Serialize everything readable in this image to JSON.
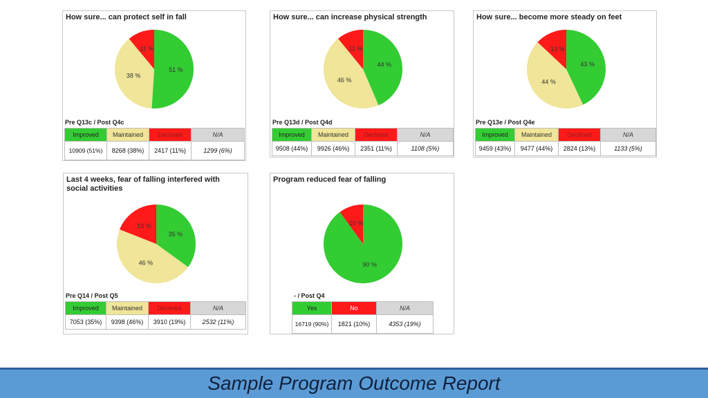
{
  "colors": {
    "improved": "#33cc33",
    "maintained": "#f0e598",
    "declined": "#ff1a1a",
    "na": "#d7d7d7",
    "footer": "#5b9bd5"
  },
  "footer": {
    "title": "Sample Program Outcome Report"
  },
  "chart_data": [
    {
      "type": "pie",
      "title": "How sure... can protect self in fall",
      "question_label": "Pre Q13c / Post Q4c",
      "slices": [
        {
          "name": "Improved",
          "value": 51,
          "label": "51 %"
        },
        {
          "name": "Maintained",
          "value": 38,
          "label": "38 %"
        },
        {
          "name": "Declined",
          "value": 11,
          "label": "11 %"
        }
      ],
      "legend": [
        "Improved",
        "Maintained",
        "Declined",
        "N/A"
      ],
      "counts": [
        "10909 (51%)",
        "8268 (38%)",
        "2417 (11%)",
        "1299 (6%)"
      ]
    },
    {
      "type": "pie",
      "title": "How sure... can increase physical strength",
      "question_label": "Pre Q13d / Post Q4d",
      "slices": [
        {
          "name": "Improved",
          "value": 44,
          "label": "44 %"
        },
        {
          "name": "Maintained",
          "value": 46,
          "label": "46 %"
        },
        {
          "name": "Declined",
          "value": 11,
          "label": "11 %"
        }
      ],
      "legend": [
        "Improved",
        "Maintained",
        "Declined",
        "N/A"
      ],
      "counts": [
        "9508 (44%)",
        "9926 (46%)",
        "2351 (11%)",
        "1108 (5%)"
      ]
    },
    {
      "type": "pie",
      "title": "How sure... become more steady on feet",
      "question_label": "Pre Q13e / Post Q4e",
      "slices": [
        {
          "name": "Improved",
          "value": 43,
          "label": "43 %"
        },
        {
          "name": "Maintained",
          "value": 44,
          "label": "44 %"
        },
        {
          "name": "Declined",
          "value": 13,
          "label": "13 %"
        }
      ],
      "legend": [
        "Improved",
        "Maintained",
        "Declined",
        "N/A"
      ],
      "counts": [
        "9459 (43%)",
        "9477 (44%)",
        "2824 (13%)",
        "1133 (5%)"
      ]
    },
    {
      "type": "pie",
      "title": "Last 4 weeks, fear of falling interfered with social activities",
      "question_label": "Pre Q14 / Post Q5",
      "slices": [
        {
          "name": "Improved",
          "value": 35,
          "label": "35 %"
        },
        {
          "name": "Maintained",
          "value": 46,
          "label": "46 %"
        },
        {
          "name": "Declined",
          "value": 19,
          "label": "19 %"
        }
      ],
      "legend": [
        "Improved",
        "Maintained",
        "Declined",
        "N/A"
      ],
      "counts": [
        "7053 (35%)",
        "9398 (46%)",
        "3910 (19%)",
        "2532 (11%)"
      ]
    },
    {
      "type": "pie",
      "title": "Program reduced fear of falling",
      "question_label": "- / Post Q4",
      "slices": [
        {
          "name": "Yes",
          "value": 90,
          "label": "90 %"
        },
        {
          "name": "No",
          "value": 10,
          "label": "10 %"
        }
      ],
      "legend": [
        "Yes",
        "No",
        "N/A"
      ],
      "counts": [
        "16719 (90%)",
        "1821 (10%)",
        "4353 (19%)"
      ]
    }
  ]
}
